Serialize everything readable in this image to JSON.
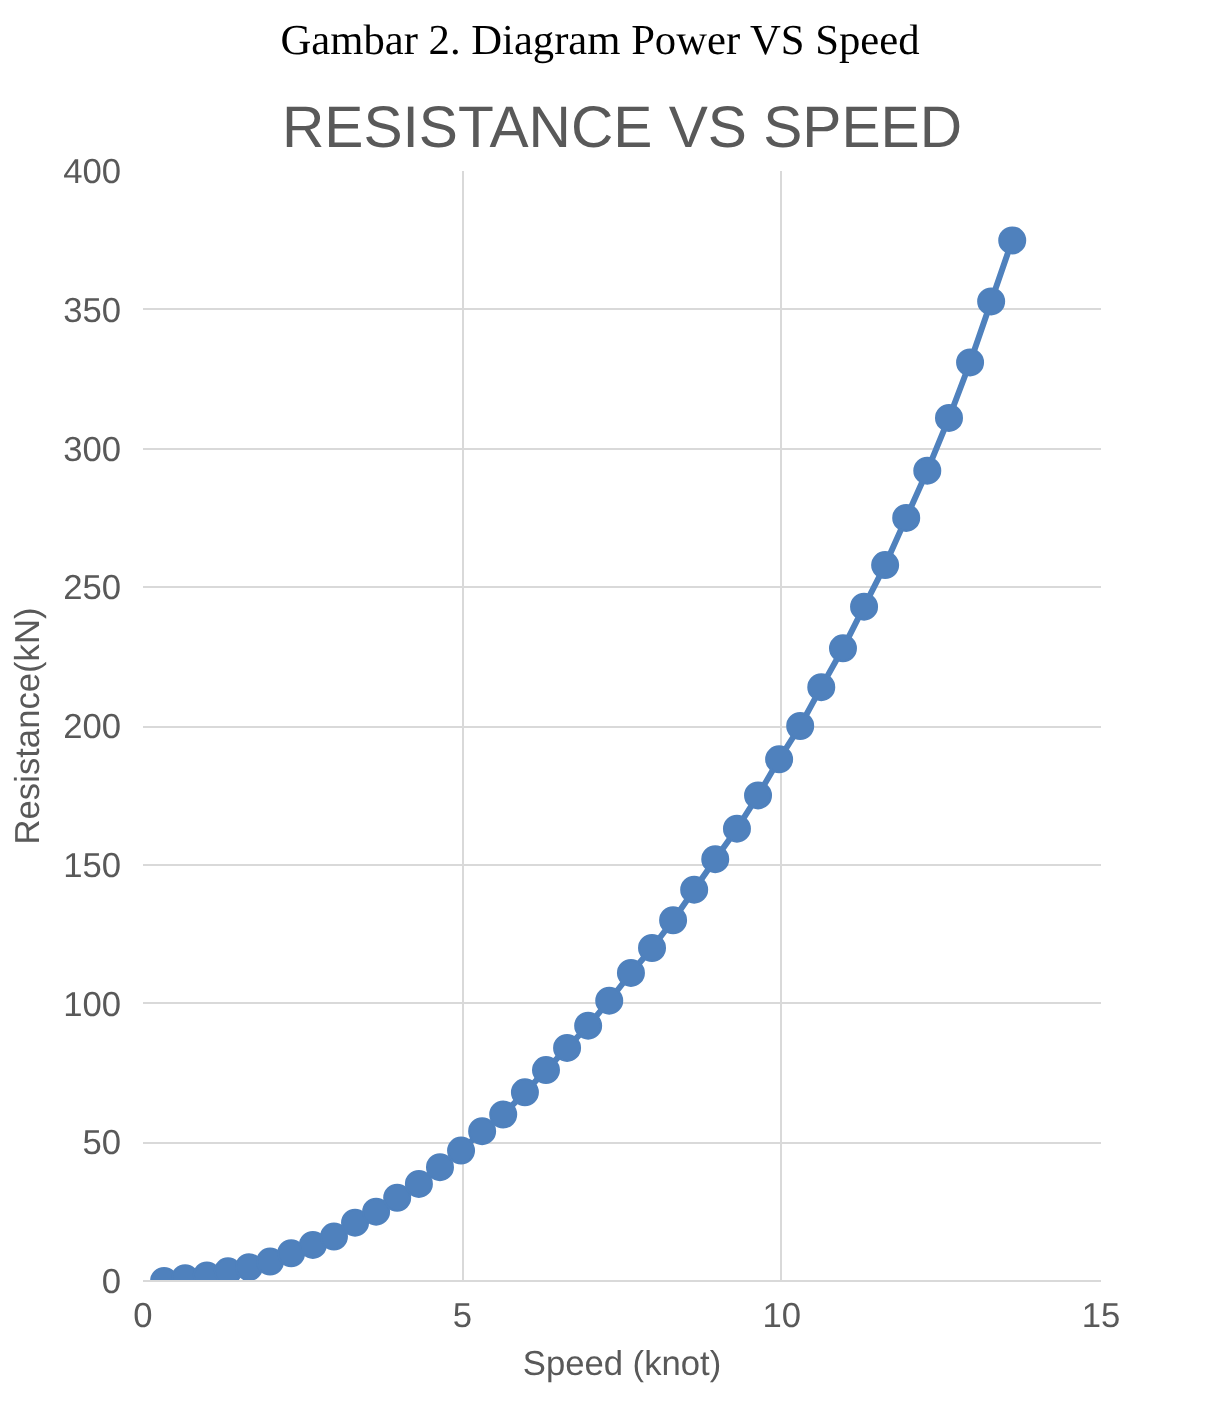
{
  "chart_data": {
    "type": "line",
    "title": "RESISTANCE VS SPEED",
    "xlabel": "Speed (knot)",
    "ylabel": "Resistance(kN)",
    "annotations": [
      "Gambar 2. Diagram Power VS Speed"
    ],
    "x": [
      0.33,
      0.66,
      1.0,
      1.33,
      1.66,
      1.99,
      2.32,
      2.66,
      2.99,
      3.32,
      3.65,
      3.98,
      4.32,
      4.65,
      4.98,
      5.31,
      5.64,
      5.98,
      6.31,
      6.64,
      6.97,
      7.3,
      7.64,
      7.97,
      8.3,
      8.63,
      8.96,
      9.3,
      9.63,
      9.96,
      10.29,
      10.62,
      10.96,
      11.29,
      11.62,
      11.95,
      12.28,
      12.62,
      12.95,
      13.28,
      13.61
    ],
    "series": [
      {
        "color": "#4f81bd",
        "values": [
          0,
          1,
          2,
          3.5,
          5,
          7,
          10,
          13,
          16,
          21,
          25,
          30,
          35,
          41,
          47,
          54,
          60,
          68,
          76,
          84,
          92,
          101,
          111,
          120,
          130,
          141,
          152,
          163,
          175,
          188,
          200,
          214,
          228,
          243,
          258,
          275,
          292,
          311,
          331,
          353,
          375
        ]
      }
    ],
    "xlim": [
      0,
      15
    ],
    "xticks": [
      0,
      5,
      10,
      15
    ],
    "ylim": [
      0,
      400
    ],
    "yticks": [
      0,
      50,
      100,
      150,
      200,
      250,
      300,
      350,
      400
    ],
    "grid": true,
    "marker": "circle",
    "line_style": "solid"
  }
}
